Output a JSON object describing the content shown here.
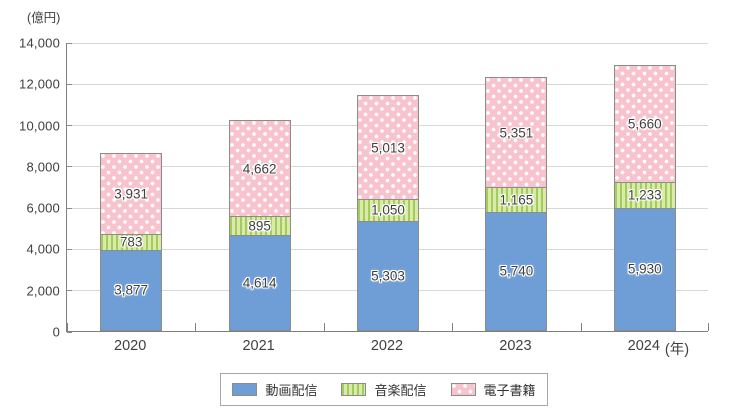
{
  "chart_data": {
    "type": "bar",
    "stacked": true,
    "unit_label": "(億円)",
    "categories": [
      "2020",
      "2021",
      "2022",
      "2023",
      "2024"
    ],
    "x_axis_suffix": "(年)",
    "ylim": [
      0,
      14000
    ],
    "y_tick_step": 2000,
    "y_ticks": [
      {
        "value": 0,
        "label": "0"
      },
      {
        "value": 2000,
        "label": "2,000"
      },
      {
        "value": 4000,
        "label": "4,000"
      },
      {
        "value": 6000,
        "label": "6,000"
      },
      {
        "value": 8000,
        "label": "8,000"
      },
      {
        "value": 10000,
        "label": "10,000"
      },
      {
        "value": 12000,
        "label": "12,000"
      },
      {
        "value": 14000,
        "label": "14,000"
      }
    ],
    "grid": true,
    "legend_position": "bottom",
    "series": [
      {
        "name": "動画配信",
        "pattern": "solid",
        "color": "#6f9ed7",
        "values": [
          3877,
          4614,
          5303,
          5740,
          5930
        ],
        "labels": [
          "3,877",
          "4,614",
          "5,303",
          "5,740",
          "5,930"
        ]
      },
      {
        "name": "音楽配信",
        "pattern": "vertical-stripes",
        "color": "#d9eba6",
        "stripe_color": "#a2cb60",
        "values": [
          783,
          895,
          1050,
          1165,
          1233
        ],
        "labels": [
          "783",
          "895",
          "1,050",
          "1,165",
          "1,233"
        ]
      },
      {
        "name": "電子書籍",
        "pattern": "polka-dots",
        "color": "#f8c3cc",
        "dot_color": "#ffffff",
        "values": [
          3931,
          4662,
          5013,
          5351,
          5660
        ],
        "labels": [
          "3,931",
          "4,662",
          "5,013",
          "5,351",
          "5,660"
        ]
      }
    ]
  }
}
